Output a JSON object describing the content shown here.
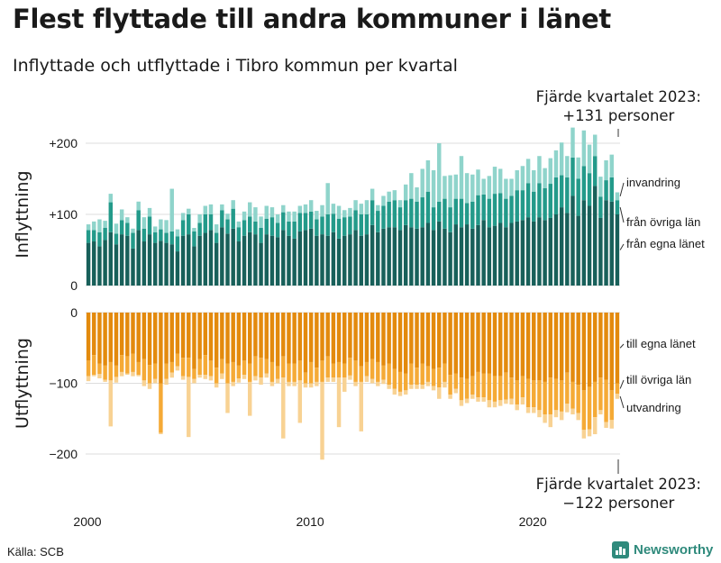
{
  "header": {
    "title": "Flest flyttade till andra kommuner i länet",
    "subtitle": "Inflyttade och utflyttade i Tibro kommun per kvartal"
  },
  "notes": {
    "top_line1": "Fjärde kvartalet 2023:",
    "top_line2": "+131 personer",
    "bottom_line1": "Fjärde kvartalet 2023:",
    "bottom_line2": "−122 personer"
  },
  "footer": {
    "source": "Källa: SCB",
    "brand": "Newsworthy"
  },
  "colors": {
    "in_same_lan": "#18605a",
    "in_other_lan": "#239a8a",
    "in_immigration": "#8fd4cb",
    "out_same_lan": "#e38a0d",
    "out_other_lan": "#f5aa36",
    "out_emigration": "#f8d293",
    "gridline": "#dddddd"
  },
  "chart_data": [
    {
      "type": "bar",
      "stacked": true,
      "ylabel": "Inflyttning",
      "ylim": [
        0,
        210
      ],
      "yticks": [
        0,
        100,
        200
      ],
      "ytick_labels": [
        "0",
        "+100",
        "+200"
      ],
      "x_tick_labels": [
        "2000",
        "2010",
        "2020"
      ],
      "categories": [
        "2000Q1",
        "2000Q2",
        "2000Q3",
        "2000Q4",
        "2001Q1",
        "2001Q2",
        "2001Q3",
        "2001Q4",
        "2002Q1",
        "2002Q2",
        "2002Q3",
        "2002Q4",
        "2003Q1",
        "2003Q2",
        "2003Q3",
        "2003Q4",
        "2004Q1",
        "2004Q2",
        "2004Q3",
        "2004Q4",
        "2005Q1",
        "2005Q2",
        "2005Q3",
        "2005Q4",
        "2006Q1",
        "2006Q2",
        "2006Q3",
        "2006Q4",
        "2007Q1",
        "2007Q2",
        "2007Q3",
        "2007Q4",
        "2008Q1",
        "2008Q2",
        "2008Q3",
        "2008Q4",
        "2009Q1",
        "2009Q2",
        "2009Q3",
        "2009Q4",
        "2010Q1",
        "2010Q2",
        "2010Q3",
        "2010Q4",
        "2011Q1",
        "2011Q2",
        "2011Q3",
        "2011Q4",
        "2012Q1",
        "2012Q2",
        "2012Q3",
        "2012Q4",
        "2013Q1",
        "2013Q2",
        "2013Q3",
        "2013Q4",
        "2014Q1",
        "2014Q2",
        "2014Q3",
        "2014Q4",
        "2015Q1",
        "2015Q2",
        "2015Q3",
        "2015Q4",
        "2016Q1",
        "2016Q2",
        "2016Q3",
        "2016Q4",
        "2017Q1",
        "2017Q2",
        "2017Q3",
        "2017Q4",
        "2018Q1",
        "2018Q2",
        "2018Q3",
        "2018Q4",
        "2019Q1",
        "2019Q2",
        "2019Q3",
        "2019Q4",
        "2020Q1",
        "2020Q2",
        "2020Q3",
        "2020Q4",
        "2021Q1",
        "2021Q2",
        "2021Q3",
        "2021Q4",
        "2022Q1",
        "2022Q2",
        "2022Q3",
        "2022Q4",
        "2023Q1",
        "2023Q2",
        "2023Q3",
        "2023Q4"
      ],
      "series": [
        {
          "name": "från egna länet",
          "values": [
            60,
            62,
            55,
            64,
            75,
            58,
            72,
            70,
            52,
            78,
            62,
            72,
            60,
            63,
            60,
            58,
            48,
            70,
            72,
            55,
            70,
            74,
            78,
            60,
            82,
            73,
            80,
            62,
            70,
            75,
            72,
            60,
            72,
            70,
            68,
            78,
            70,
            66,
            76,
            78,
            80,
            70,
            72,
            70,
            75,
            66,
            70,
            72,
            78,
            70,
            72,
            85,
            75,
            80,
            82,
            82,
            78,
            85,
            82,
            80,
            82,
            88,
            78,
            90,
            80,
            75,
            86,
            82,
            86,
            80,
            85,
            92,
            82,
            84,
            88,
            82,
            88,
            90,
            92,
            96,
            90,
            96,
            92,
            95,
            100,
            110,
            102,
            126,
            98,
            120,
            112,
            140,
            95,
            120,
            118,
            100
          ]
        },
        {
          "name": "från övriga län",
          "values": [
            18,
            16,
            20,
            17,
            42,
            15,
            20,
            18,
            22,
            28,
            18,
            25,
            15,
            16,
            14,
            18,
            21,
            22,
            28,
            21,
            18,
            26,
            22,
            14,
            24,
            20,
            28,
            20,
            22,
            22,
            18,
            21,
            22,
            26,
            20,
            25,
            20,
            24,
            26,
            24,
            24,
            23,
            25,
            30,
            26,
            28,
            26,
            25,
            28,
            30,
            28,
            35,
            30,
            32,
            36,
            38,
            32,
            35,
            40,
            38,
            42,
            44,
            32,
            28,
            42,
            35,
            36,
            40,
            30,
            38,
            42,
            36,
            40,
            45,
            42,
            40,
            38,
            44,
            42,
            48,
            42,
            48,
            45,
            48,
            52,
            45,
            50,
            54,
            52,
            48,
            46,
            42,
            30,
            28,
            34,
            20
          ]
        },
        {
          "name": "invandring",
          "values": [
            8,
            12,
            18,
            10,
            12,
            14,
            15,
            8,
            6,
            12,
            16,
            12,
            8,
            14,
            18,
            60,
            10,
            10,
            8,
            5,
            12,
            12,
            14,
            12,
            8,
            8,
            12,
            8,
            12,
            20,
            20,
            16,
            18,
            14,
            12,
            10,
            14,
            14,
            10,
            12,
            16,
            12,
            16,
            44,
            14,
            18,
            10,
            12,
            14,
            15,
            20,
            16,
            8,
            14,
            14,
            14,
            10,
            22,
            36,
            20,
            40,
            44,
            52,
            82,
            32,
            45,
            34,
            60,
            42,
            38,
            36,
            22,
            32,
            38,
            34,
            28,
            24,
            28,
            34,
            34,
            30,
            38,
            28,
            36,
            38,
            46,
            30,
            42,
            30,
            50,
            40,
            30,
            28,
            28,
            32,
            11
          ]
        }
      ]
    },
    {
      "type": "bar",
      "stacked": true,
      "ylabel": "Utflyttning",
      "ylim": [
        -210,
        0
      ],
      "yticks": [
        0,
        -100,
        -200
      ],
      "ytick_labels": [
        "0",
        "−100",
        "−200"
      ],
      "x_tick_labels": [
        "2000",
        "2010",
        "2020"
      ],
      "categories": [
        "2000Q1",
        "2000Q2",
        "2000Q3",
        "2000Q4",
        "2001Q1",
        "2001Q2",
        "2001Q3",
        "2001Q4",
        "2002Q1",
        "2002Q2",
        "2002Q3",
        "2002Q4",
        "2003Q1",
        "2003Q2",
        "2003Q3",
        "2003Q4",
        "2004Q1",
        "2004Q2",
        "2004Q3",
        "2004Q4",
        "2005Q1",
        "2005Q2",
        "2005Q3",
        "2005Q4",
        "2006Q1",
        "2006Q2",
        "2006Q3",
        "2006Q4",
        "2007Q1",
        "2007Q2",
        "2007Q3",
        "2007Q4",
        "2008Q1",
        "2008Q2",
        "2008Q3",
        "2008Q4",
        "2009Q1",
        "2009Q2",
        "2009Q3",
        "2009Q4",
        "2010Q1",
        "2010Q2",
        "2010Q3",
        "2010Q4",
        "2011Q1",
        "2011Q2",
        "2011Q3",
        "2011Q4",
        "2012Q1",
        "2012Q2",
        "2012Q3",
        "2012Q4",
        "2013Q1",
        "2013Q2",
        "2013Q3",
        "2013Q4",
        "2014Q1",
        "2014Q2",
        "2014Q3",
        "2014Q4",
        "2015Q1",
        "2015Q2",
        "2015Q3",
        "2015Q4",
        "2016Q1",
        "2016Q2",
        "2016Q3",
        "2016Q4",
        "2017Q1",
        "2017Q2",
        "2017Q3",
        "2017Q4",
        "2018Q1",
        "2018Q2",
        "2018Q3",
        "2018Q4",
        "2019Q1",
        "2019Q2",
        "2019Q3",
        "2019Q4",
        "2020Q1",
        "2020Q2",
        "2020Q3",
        "2020Q4",
        "2021Q1",
        "2021Q2",
        "2021Q3",
        "2021Q4",
        "2022Q1",
        "2022Q2",
        "2022Q3",
        "2022Q4",
        "2023Q1",
        "2023Q2",
        "2023Q3",
        "2023Q4"
      ],
      "series": [
        {
          "name": "till egna länet",
          "values": [
            -68,
            -60,
            -72,
            -75,
            -70,
            -75,
            -60,
            -62,
            -58,
            -70,
            -66,
            -74,
            -72,
            -100,
            -72,
            -70,
            -58,
            -64,
            -64,
            -80,
            -66,
            -60,
            -68,
            -78,
            -66,
            -72,
            -70,
            -75,
            -68,
            -72,
            -62,
            -64,
            -66,
            -70,
            -76,
            -62,
            -72,
            -72,
            -68,
            -85,
            -70,
            -78,
            -68,
            -62,
            -72,
            -70,
            -72,
            -64,
            -68,
            -76,
            -70,
            -66,
            -70,
            -75,
            -72,
            -80,
            -84,
            -86,
            -72,
            -78,
            -72,
            -76,
            -80,
            -78,
            -72,
            -88,
            -86,
            -92,
            -94,
            -90,
            -84,
            -86,
            -86,
            -90,
            -90,
            -85,
            -92,
            -96,
            -90,
            -94,
            -96,
            -96,
            -98,
            -92,
            -94,
            -96,
            -85,
            -98,
            -102,
            -110,
            -105,
            -98,
            -92,
            -95,
            -110,
            -100
          ]
        },
        {
          "name": "till övriga län",
          "values": [
            -22,
            -28,
            -15,
            -20,
            -26,
            -16,
            -24,
            -24,
            -26,
            -18,
            -30,
            -26,
            -22,
            -70,
            -22,
            -15,
            -18,
            -26,
            -27,
            -14,
            -22,
            -28,
            -22,
            -22,
            -20,
            -28,
            -28,
            -18,
            -20,
            -26,
            -28,
            -28,
            -20,
            -28,
            -18,
            -30,
            -26,
            -26,
            -28,
            -15,
            -30,
            -20,
            -30,
            -30,
            -20,
            -22,
            -20,
            -25,
            -30,
            -22,
            -20,
            -28,
            -28,
            -20,
            -30,
            -28,
            -28,
            -24,
            -30,
            -24,
            -30,
            -22,
            -24,
            -28,
            -26,
            -28,
            -22,
            -32,
            -28,
            -26,
            -36,
            -34,
            -38,
            -36,
            -34,
            -38,
            -30,
            -34,
            -30,
            -40,
            -38,
            -42,
            -46,
            -52,
            -44,
            -44,
            -44,
            -38,
            -40,
            -56,
            -60,
            -50,
            -46,
            -60,
            -42,
            -15
          ]
        },
        {
          "name": "utvandring",
          "values": [
            -7,
            -2,
            -6,
            -3,
            -65,
            -8,
            -6,
            -2,
            -6,
            -2,
            -8,
            -8,
            -6,
            -2,
            -8,
            -7,
            -6,
            -5,
            -85,
            -6,
            -4,
            -6,
            -6,
            -6,
            -8,
            -42,
            -6,
            -6,
            -6,
            -48,
            -6,
            -10,
            -6,
            -6,
            -6,
            -86,
            -6,
            -6,
            -60,
            -6,
            -6,
            -6,
            -110,
            -6,
            -6,
            -70,
            -20,
            -6,
            -6,
            -70,
            -8,
            -6,
            -6,
            -6,
            -6,
            -8,
            -6,
            -6,
            -6,
            -6,
            -6,
            -6,
            -6,
            -16,
            -8,
            -6,
            -6,
            -8,
            -6,
            -6,
            -6,
            -6,
            -10,
            -8,
            -8,
            -6,
            -8,
            -8,
            -10,
            -8,
            -8,
            -10,
            -12,
            -18,
            -10,
            -12,
            -12,
            -8,
            -10,
            -12,
            -10,
            -24,
            -6,
            -8,
            -12,
            -7
          ]
        }
      ]
    }
  ],
  "legend": {
    "top": [
      "invandring",
      "från övriga län",
      "från egna länet"
    ],
    "bottom": [
      "till egna länet",
      "till övriga län",
      "utvandring"
    ]
  }
}
